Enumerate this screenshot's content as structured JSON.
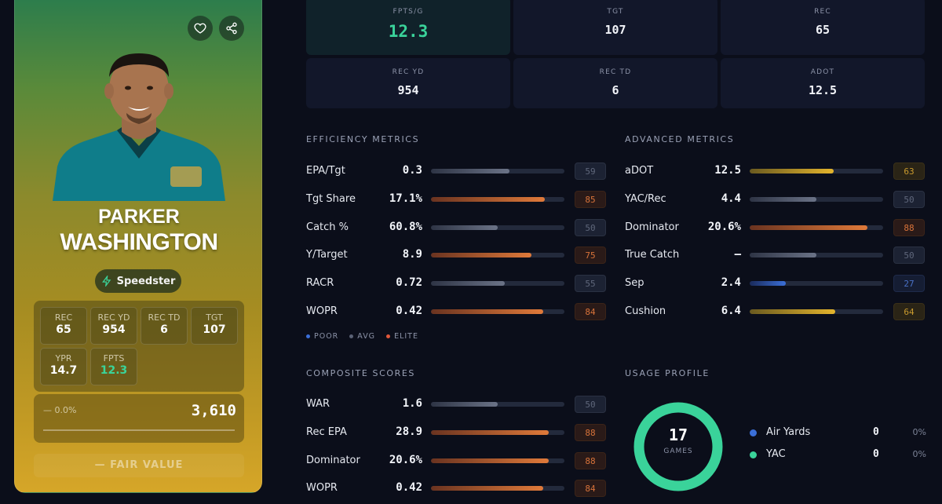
{
  "player": {
    "first_name": "PARKER",
    "last_name": "WASHINGTON",
    "archetype": "Speedster",
    "stats": [
      {
        "label": "REC",
        "value": "65"
      },
      {
        "label": "REC YD",
        "value": "954"
      },
      {
        "label": "REC TD",
        "value": "6"
      },
      {
        "label": "TGT",
        "value": "107"
      },
      {
        "label": "YPR",
        "value": "14.7"
      },
      {
        "label": "FPTS",
        "value": "12.3"
      }
    ],
    "value_change": "— 0.0%",
    "value": "3,610",
    "fair_value_label": "— FAIR VALUE"
  },
  "top_stats": [
    {
      "label": "FPTS/G",
      "value": "12.3"
    },
    {
      "label": "TGT",
      "value": "107"
    },
    {
      "label": "REC",
      "value": "65"
    },
    {
      "label": "REC YD",
      "value": "954"
    },
    {
      "label": "REC TD",
      "value": "6"
    },
    {
      "label": "ADOT",
      "value": "12.5"
    }
  ],
  "efficiency": {
    "title": "EFFICIENCY METRICS",
    "rows": [
      {
        "label": "EPA/Tgt",
        "value": "0.3",
        "pct": "59",
        "tier": "avg"
      },
      {
        "label": "Tgt Share",
        "value": "17.1%",
        "pct": "85",
        "tier": "elite"
      },
      {
        "label": "Catch %",
        "value": "60.8%",
        "pct": "50",
        "tier": "avg"
      },
      {
        "label": "Y/Target",
        "value": "8.9",
        "pct": "75",
        "tier": "elite"
      },
      {
        "label": "RACR",
        "value": "0.72",
        "pct": "55",
        "tier": "avg"
      },
      {
        "label": "WOPR",
        "value": "0.42",
        "pct": "84",
        "tier": "elite"
      }
    ]
  },
  "advanced": {
    "title": "ADVANCED METRICS",
    "rows": [
      {
        "label": "aDOT",
        "value": "12.5",
        "pct": "63",
        "tier": "gold"
      },
      {
        "label": "YAC/Rec",
        "value": "4.4",
        "pct": "50",
        "tier": "avg"
      },
      {
        "label": "Dominator",
        "value": "20.6%",
        "pct": "88",
        "tier": "elite"
      },
      {
        "label": "True Catch",
        "value": "—",
        "pct": "50",
        "tier": "avg"
      },
      {
        "label": "Sep",
        "value": "2.4",
        "pct": "27",
        "tier": "poor"
      },
      {
        "label": "Cushion",
        "value": "6.4",
        "pct": "64",
        "tier": "gold"
      }
    ]
  },
  "legend": {
    "poor": "POOR",
    "avg": "AVG",
    "elite": "ELITE"
  },
  "composite": {
    "title": "COMPOSITE SCORES",
    "rows": [
      {
        "label": "WAR",
        "value": "1.6",
        "pct": "50",
        "tier": "avg"
      },
      {
        "label": "Rec EPA",
        "value": "28.9",
        "pct": "88",
        "tier": "elite"
      },
      {
        "label": "Dominator",
        "value": "20.6%",
        "pct": "88",
        "tier": "elite"
      },
      {
        "label": "WOPR",
        "value": "0.42",
        "pct": "84",
        "tier": "elite"
      }
    ]
  },
  "usage": {
    "title": "USAGE PROFILE",
    "games": "17",
    "games_label": "GAMES",
    "rows": [
      {
        "label": "Air Yards",
        "value": "0",
        "pct": "0%"
      },
      {
        "label": "YAC",
        "value": "0",
        "pct": "0%"
      }
    ]
  },
  "colors": {
    "accent_green": "#3ad39a",
    "elite": "#e07a3a",
    "gold": "#d4a829",
    "avg": "#5a6275",
    "poor": "#3b6fd8",
    "donut": "#3ad39a"
  }
}
